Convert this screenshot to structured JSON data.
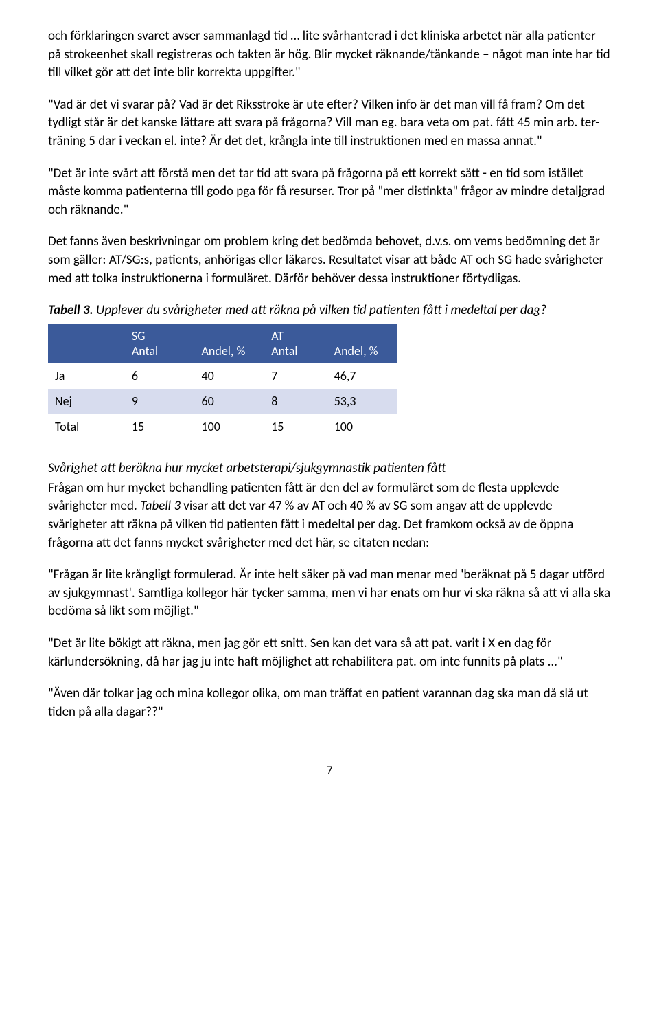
{
  "paragraphs": {
    "p1": "och förklaringen svaret avser sammanlagd tid … lite svårhanterad i det kliniska arbetet när alla patienter på strokeenhet skall registreras och takten är hög. Blir mycket räknande/tänkande – något man inte har tid till vilket gör att det inte blir korrekta uppgifter.\"",
    "p2": "\"Vad är det vi svarar på? Vad är det Riksstroke är ute efter? Vilken info är det man vill få fram? Om det tydligt står är det kanske lättare att svara på frågorna? Vill man eg. bara veta om pat. fått 45 min arb. ter-träning 5 dar i veckan el. inte? Är det det, krångla inte till instruktionen med en massa annat.\"",
    "p3": "\"Det är inte svårt att förstå men det tar tid att svara på frågorna på ett korrekt sätt - en tid som istället måste komma patienterna till godo pga för få resurser. Tror på \"mer distinkta\" frågor av mindre detaljgrad och räknande.\"",
    "p4": "Det fanns även beskrivningar om problem kring det bedömda behovet, d.v.s. om vems bedömning det är som gäller: AT/SG:s, patients, anhörigas eller läkares. Resultatet visar att både AT och SG hade svårigheter med att tolka instruktionerna i formuläret. Därför behöver dessa instruktioner förtydligas.",
    "caption_prefix": "Tabell 3.",
    "caption_rest": " Upplever du svårigheter med att räkna på vilken tid patienten fått i medeltal per dag?",
    "section_heading": "Svårighet att beräkna hur mycket arbetsterapi/sjukgymnastik patienten fått",
    "p5a": "Frågan om hur mycket behandling patienten fått är den del av formuläret som de flesta upplevde svårigheter med. ",
    "p5_tabell": "Tabell 3",
    "p5b": " visar att det var 47 % av AT och 40 % av SG som angav att de upplevde svårigheter att räkna på vilken tid patienten fått i medeltal per dag. Det framkom också av de öppna frågorna att det fanns mycket svårigheter med det här, se citaten nedan:",
    "p6": "\"Frågan är lite krångligt formulerad. Är inte helt säker på vad man menar med 'beräknat på 5 dagar utförd av sjukgymnast'. Samtliga kollegor här tycker samma, men vi har enats om hur vi ska räkna så att vi alla ska bedöma så likt som möjligt.\"",
    "p7": "\"Det är lite bökigt att räkna, men jag gör ett snitt. Sen kan det vara så att pat. varit i X en dag för kärlundersökning, då har jag ju inte haft möjlighet att rehabilitera pat. om inte funnits på plats ...\"",
    "p8": "\"Även där tolkar jag och mina kollegor olika, om man träffat en patient varannan dag ska man då slå ut tiden på alla dagar??\"",
    "page_number": "7"
  },
  "table": {
    "header": {
      "blank": "",
      "sg_line1": "SG",
      "sg_line2": "Antal",
      "sg_andel": "Andel, %",
      "at_line1": "AT",
      "at_line2": "Antal",
      "at_andel": "Andel, %"
    },
    "rows": [
      {
        "label": "Ja",
        "sg_antal": "6",
        "sg_andel": "40",
        "at_antal": "7",
        "at_andel": "46,7",
        "alt": false
      },
      {
        "label": "Nej",
        "sg_antal": "9",
        "sg_andel": "60",
        "at_antal": "8",
        "at_andel": "53,3",
        "alt": true
      },
      {
        "label": "Total",
        "sg_antal": "15",
        "sg_andel": "100",
        "at_antal": "15",
        "at_andel": "100",
        "alt": false,
        "total": true
      }
    ],
    "colors": {
      "header_bg": "#3b5a9a",
      "header_fg": "#ffffff",
      "alt_row_bg": "#d7dcee",
      "border": "#000000"
    }
  }
}
